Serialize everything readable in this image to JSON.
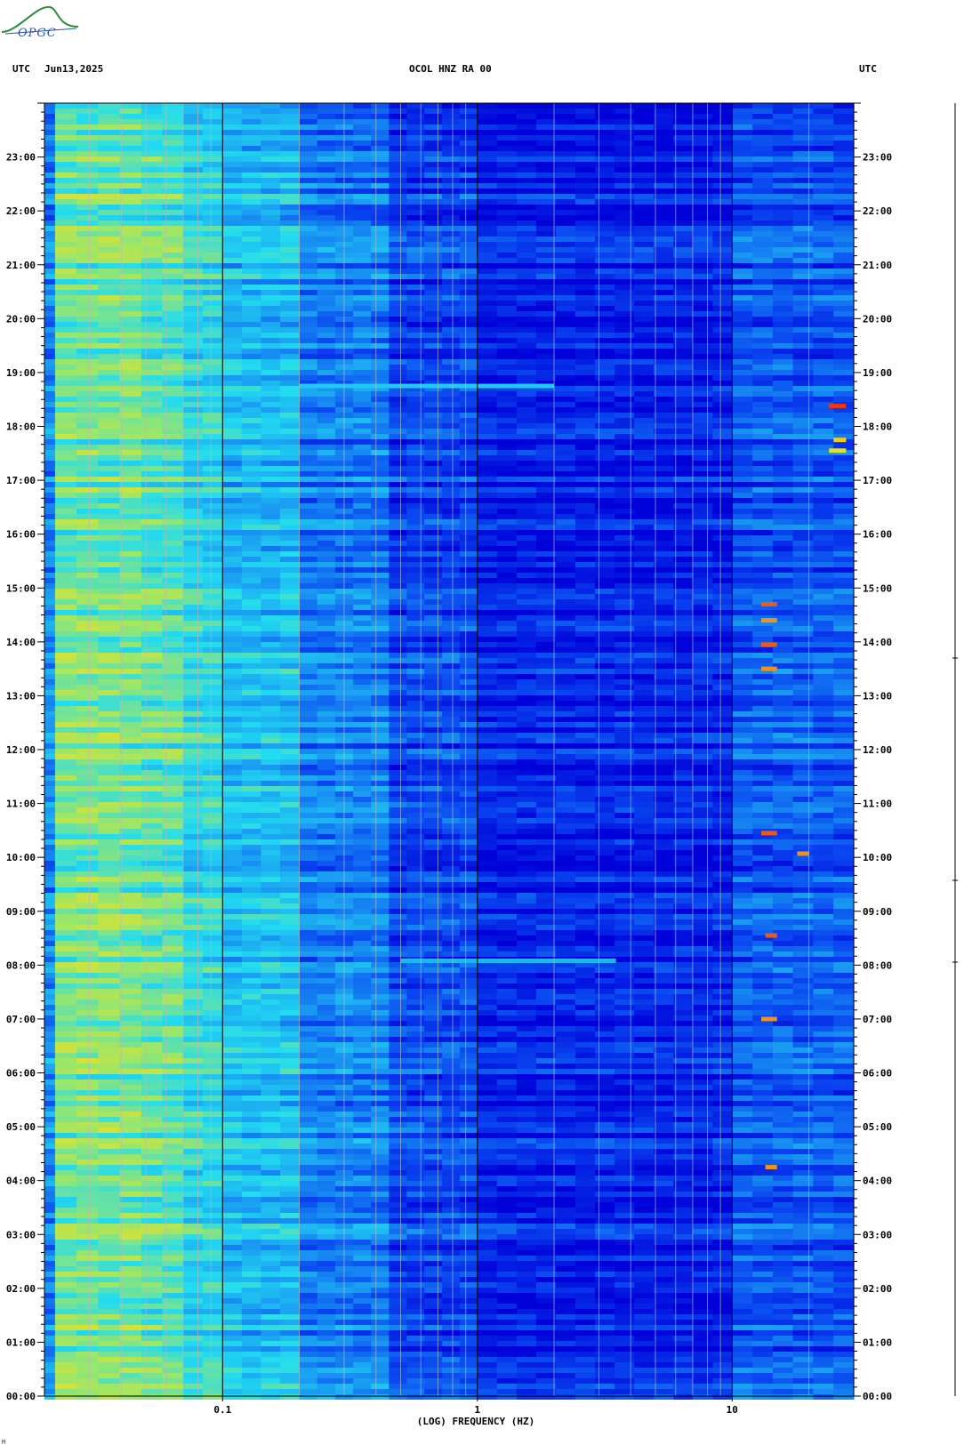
{
  "header": {
    "utc_left": "UTC",
    "date": "Jun13,2025",
    "station_title": "OCOL HNZ RA 00",
    "utc_right": "UTC"
  },
  "logo": {
    "text": "OPGC"
  },
  "corner_mark": "M",
  "chart_data": {
    "type": "heatmap",
    "title": "OCOL HNZ RA 00",
    "xlabel": "(LOG) FREQUENCY (HZ)",
    "x_scale": "log",
    "xlim": [
      0.02,
      30
    ],
    "x_ticks": [
      {
        "value": 0.1,
        "label": "0.1"
      },
      {
        "value": 1,
        "label": "1"
      },
      {
        "value": 10,
        "label": "10"
      }
    ],
    "y_unit": "hours UTC",
    "ylim": [
      0,
      24
    ],
    "y_ticks": [
      {
        "value": 0,
        "label": "00:00"
      },
      {
        "value": 1,
        "label": "01:00"
      },
      {
        "value": 2,
        "label": "02:00"
      },
      {
        "value": 3,
        "label": "03:00"
      },
      {
        "value": 4,
        "label": "04:00"
      },
      {
        "value": 5,
        "label": "05:00"
      },
      {
        "value": 6,
        "label": "06:00"
      },
      {
        "value": 7,
        "label": "07:00"
      },
      {
        "value": 8,
        "label": "08:00"
      },
      {
        "value": 9,
        "label": "09:00"
      },
      {
        "value": 10,
        "label": "10:00"
      },
      {
        "value": 11,
        "label": "11:00"
      },
      {
        "value": 12,
        "label": "12:00"
      },
      {
        "value": 13,
        "label": "13:00"
      },
      {
        "value": 14,
        "label": "14:00"
      },
      {
        "value": 15,
        "label": "15:00"
      },
      {
        "value": 16,
        "label": "16:00"
      },
      {
        "value": 17,
        "label": "17:00"
      },
      {
        "value": 18,
        "label": "18:00"
      },
      {
        "value": 19,
        "label": "19:00"
      },
      {
        "value": 20,
        "label": "20:00"
      },
      {
        "value": 21,
        "label": "21:00"
      },
      {
        "value": 22,
        "label": "22:00"
      },
      {
        "value": 23,
        "label": "23:00"
      }
    ],
    "colormap": [
      "#0000d8",
      "#0a46f0",
      "#1a9cf2",
      "#22dcf0",
      "#9ae66a",
      "#f0e020",
      "#e82018"
    ],
    "bands": [
      {
        "f_min": 0.02,
        "f_max": 0.022,
        "level": 0.3
      },
      {
        "f_min": 0.022,
        "f_max": 0.048,
        "level": 0.62
      },
      {
        "f_min": 0.048,
        "f_max": 0.07,
        "level": 0.58
      },
      {
        "f_min": 0.07,
        "f_max": 0.1,
        "level": 0.5
      },
      {
        "f_min": 0.1,
        "f_max": 0.2,
        "level": 0.42
      },
      {
        "f_min": 0.2,
        "f_max": 0.45,
        "level": 0.28
      },
      {
        "f_min": 0.45,
        "f_max": 1,
        "level": 0.16
      },
      {
        "f_min": 1,
        "f_max": 10,
        "level": 0.08
      },
      {
        "f_min": 10,
        "f_max": 30,
        "level": 0.2
      }
    ],
    "events": [
      {
        "time": 18.75,
        "f_min": 0.2,
        "f_max": 2,
        "level": 0.45
      },
      {
        "time": 8.08,
        "f_min": 0.5,
        "f_max": 3.5,
        "level": 0.4
      },
      {
        "time": 18.38,
        "f_min": 24,
        "f_max": 28,
        "level": 0.98
      },
      {
        "time": 17.75,
        "f_min": 25,
        "f_max": 28,
        "level": 0.85
      },
      {
        "time": 17.55,
        "f_min": 24,
        "f_max": 28,
        "level": 0.8
      },
      {
        "time": 14.7,
        "f_min": 13,
        "f_max": 15,
        "level": 0.95
      },
      {
        "time": 14.4,
        "f_min": 13,
        "f_max": 15,
        "level": 0.9
      },
      {
        "time": 13.95,
        "f_min": 13,
        "f_max": 15,
        "level": 0.95
      },
      {
        "time": 13.5,
        "f_min": 13,
        "f_max": 15,
        "level": 0.9
      },
      {
        "time": 10.45,
        "f_min": 13,
        "f_max": 15,
        "level": 0.95
      },
      {
        "time": 8.55,
        "f_min": 13.5,
        "f_max": 15,
        "level": 0.95
      },
      {
        "time": 7.0,
        "f_min": 13,
        "f_max": 15,
        "level": 0.9
      },
      {
        "time": 4.25,
        "f_min": 13.5,
        "f_max": 15,
        "level": 0.9
      },
      {
        "time": 10.07,
        "f_min": 18,
        "f_max": 20,
        "level": 0.9
      }
    ]
  }
}
